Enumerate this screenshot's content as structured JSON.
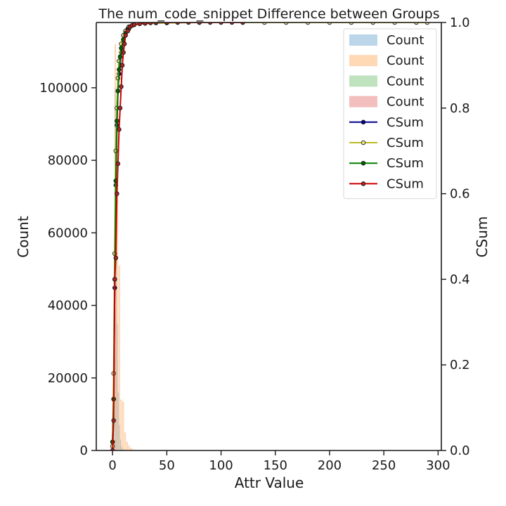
{
  "chart_data": {
    "type": "bar",
    "title": "The num_code_snippet Difference between Groups",
    "xlabel": "Attr Value",
    "ylabel": "Count",
    "y2label": "CSum",
    "xlim": [
      -15,
      303
    ],
    "ylim": [
      0,
      118000
    ],
    "y2lim": [
      0,
      1
    ],
    "xticks": [
      0,
      50,
      100,
      150,
      200,
      250,
      300
    ],
    "xtick_labels": [
      "0",
      "50",
      "100",
      "150",
      "200",
      "250",
      "300"
    ],
    "yticks": [
      0,
      20000,
      40000,
      60000,
      80000,
      100000
    ],
    "ytick_labels": [
      "0",
      "20000",
      "40000",
      "60000",
      "80000",
      "100000"
    ],
    "y2ticks": [
      0,
      0.2,
      0.4,
      0.6,
      0.8,
      1.0
    ],
    "y2tick_labels": [
      "0.0",
      "0.2",
      "0.4",
      "0.6",
      "0.8",
      "1.0"
    ],
    "grid": false,
    "legend_position": "top-right",
    "histograms": [
      {
        "name": "Count",
        "color": "#1f77b4",
        "opacity": 0.3,
        "bin_width": 1,
        "bars": [
          [
            0,
            600
          ],
          [
            1,
            48000
          ],
          [
            2,
            100000
          ],
          [
            3,
            70000
          ],
          [
            4,
            35000
          ],
          [
            5,
            16000
          ],
          [
            6,
            7000
          ],
          [
            7,
            3000
          ],
          [
            8,
            1200
          ],
          [
            9,
            500
          ]
        ]
      },
      {
        "name": "Count",
        "color": "#ff7f0e",
        "opacity": 0.3,
        "bin_width": 1.8,
        "bars": [
          [
            0,
            2000
          ],
          [
            1.8,
            112000
          ],
          [
            3.6,
            94000
          ],
          [
            5.4,
            51000
          ],
          [
            7.2,
            14000
          ],
          [
            9,
            13500
          ],
          [
            10.8,
            5000
          ],
          [
            12.6,
            2400
          ],
          [
            14.4,
            1400
          ],
          [
            16.2,
            700
          ],
          [
            18,
            300
          ]
        ]
      },
      {
        "name": "Count",
        "color": "#2ca02c",
        "opacity": 0.3,
        "bin_width": 1,
        "bars": []
      },
      {
        "name": "Count",
        "color": "#d62728",
        "opacity": 0.3,
        "bin_width": 1,
        "bars": []
      }
    ],
    "cumulative": [
      {
        "name": "CSum",
        "color": "#00008b",
        "marker_fill": "#00008b",
        "x": [
          0,
          1,
          2,
          3,
          4,
          5,
          6,
          7,
          8,
          9,
          10,
          11,
          12,
          14,
          16,
          18,
          20,
          25,
          30,
          40,
          60,
          80,
          120
        ],
        "y": [
          0.02,
          0.12,
          0.38,
          0.62,
          0.76,
          0.84,
          0.88,
          0.9,
          0.93,
          0.95,
          0.96,
          0.97,
          0.98,
          0.985,
          0.99,
          0.993,
          0.995,
          0.997,
          0.998,
          0.999,
          1.0,
          1.0,
          1.0
        ]
      },
      {
        "name": "CSum",
        "color": "#bcbd22",
        "marker_fill": "#f0e68c",
        "x": [
          0,
          1,
          2,
          3,
          4,
          5,
          6,
          8,
          10,
          12,
          15,
          20,
          30,
          50,
          80,
          120,
          140,
          160,
          180,
          200,
          220,
          240,
          260,
          280,
          290
        ],
        "y": [
          0.01,
          0.18,
          0.46,
          0.7,
          0.8,
          0.87,
          0.91,
          0.95,
          0.97,
          0.98,
          0.99,
          0.995,
          0.998,
          0.999,
          1.0,
          1.0,
          1.0,
          1.0,
          1.0,
          1.0,
          1.0,
          1.0,
          1.0,
          1.0,
          1.0
        ]
      },
      {
        "name": "CSum",
        "color": "#008000",
        "marker_fill": "#006400",
        "x": [
          0,
          1,
          2,
          3,
          4,
          5,
          6,
          7,
          8,
          10,
          12,
          15,
          20,
          30,
          50
        ],
        "y": [
          0.02,
          0.12,
          0.4,
          0.63,
          0.77,
          0.84,
          0.89,
          0.92,
          0.94,
          0.96,
          0.975,
          0.985,
          0.995,
          0.999,
          1.0
        ]
      },
      {
        "name": "CSum",
        "color": "#d00000",
        "marker_fill": "#b22222",
        "x": [
          0,
          1,
          2,
          3,
          4,
          5,
          6,
          7,
          8,
          9,
          10,
          11,
          12,
          14,
          16,
          18,
          20,
          25,
          30,
          35,
          40,
          50,
          60,
          70,
          80,
          90,
          100,
          110,
          120
        ],
        "y": [
          0.0,
          0.07,
          0.4,
          0.45,
          0.6,
          0.67,
          0.75,
          0.8,
          0.85,
          0.9,
          0.93,
          0.95,
          0.97,
          0.98,
          0.99,
          0.993,
          0.995,
          0.997,
          0.998,
          0.999,
          1.0,
          1.0,
          1.0,
          1.0,
          1.0,
          1.0,
          1.0,
          1.0,
          1.0
        ]
      }
    ]
  }
}
